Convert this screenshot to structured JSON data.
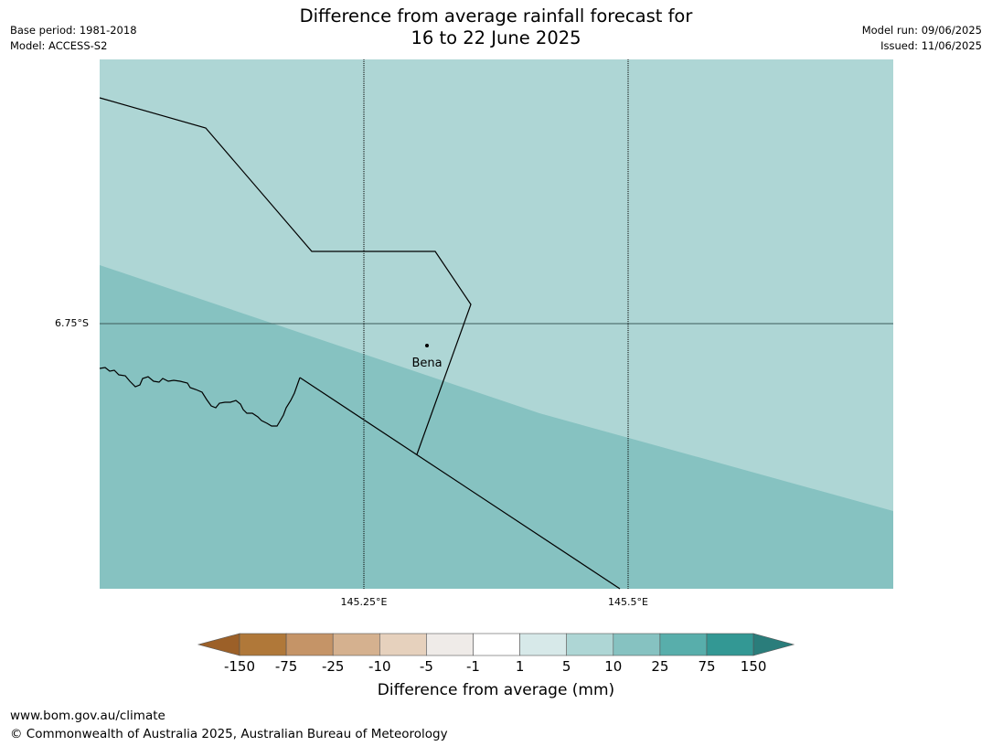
{
  "header": {
    "title_line1": "Difference from average rainfall forecast for",
    "title_line2": "16 to 22 June 2025",
    "base_period": "Base period: 1981-2018",
    "model": "Model: ACCESS-S2",
    "model_run": "Model run: 09/06/2025",
    "issued": "Issued: 11/06/2025"
  },
  "map": {
    "lat_label": "6.75°S",
    "lon_labels": [
      "145.25°E",
      "145.5°E"
    ],
    "place_label": "Bena",
    "colors": {
      "upper_region": "#aed6d5",
      "lower_region": "#86c2c1",
      "border_line": "#000000",
      "grid_line": "#000000"
    }
  },
  "colorbar": {
    "label": "Difference from average (mm)",
    "ticks": [
      "-150",
      "-75",
      "-25",
      "-10",
      "-5",
      "-1",
      "1",
      "5",
      "10",
      "25",
      "75",
      "150"
    ],
    "low_extend_color": "#9c6028",
    "high_extend_color": "#2a7d7b",
    "segment_colors": [
      "#b07839",
      "#c59467",
      "#d5b18f",
      "#e6d1bd",
      "#efebe8",
      "#ffffff",
      "#d7e9e9",
      "#aed6d5",
      "#86c2c1",
      "#58aeab",
      "#339894"
    ]
  },
  "footer": {
    "url": "www.bom.gov.au/climate",
    "copyright": "© Commonwealth of Australia 2025, Australian Bureau of Meteorology"
  }
}
